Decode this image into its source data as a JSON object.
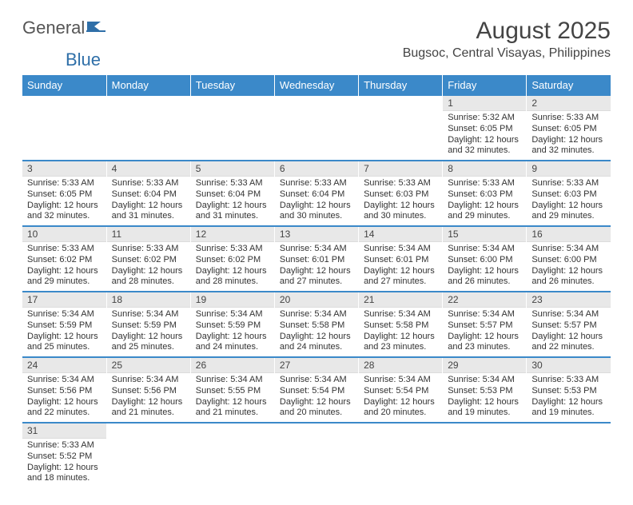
{
  "logo": {
    "text1": "General",
    "text2": "Blue"
  },
  "title": "August 2025",
  "subtitle": "Bugsoc, Central Visayas, Philippines",
  "colors": {
    "header_bg": "#3b89c9",
    "header_fg": "#ffffff",
    "daynum_bg": "#e8e8e8",
    "row_border": "#3b89c9"
  },
  "weekdays": [
    "Sunday",
    "Monday",
    "Tuesday",
    "Wednesday",
    "Thursday",
    "Friday",
    "Saturday"
  ],
  "weeks": [
    [
      null,
      null,
      null,
      null,
      null,
      {
        "n": "1",
        "sunrise": "5:32 AM",
        "sunset": "6:05 PM",
        "daylight": "12 hours and 32 minutes."
      },
      {
        "n": "2",
        "sunrise": "5:33 AM",
        "sunset": "6:05 PM",
        "daylight": "12 hours and 32 minutes."
      }
    ],
    [
      {
        "n": "3",
        "sunrise": "5:33 AM",
        "sunset": "6:05 PM",
        "daylight": "12 hours and 32 minutes."
      },
      {
        "n": "4",
        "sunrise": "5:33 AM",
        "sunset": "6:04 PM",
        "daylight": "12 hours and 31 minutes."
      },
      {
        "n": "5",
        "sunrise": "5:33 AM",
        "sunset": "6:04 PM",
        "daylight": "12 hours and 31 minutes."
      },
      {
        "n": "6",
        "sunrise": "5:33 AM",
        "sunset": "6:04 PM",
        "daylight": "12 hours and 30 minutes."
      },
      {
        "n": "7",
        "sunrise": "5:33 AM",
        "sunset": "6:03 PM",
        "daylight": "12 hours and 30 minutes."
      },
      {
        "n": "8",
        "sunrise": "5:33 AM",
        "sunset": "6:03 PM",
        "daylight": "12 hours and 29 minutes."
      },
      {
        "n": "9",
        "sunrise": "5:33 AM",
        "sunset": "6:03 PM",
        "daylight": "12 hours and 29 minutes."
      }
    ],
    [
      {
        "n": "10",
        "sunrise": "5:33 AM",
        "sunset": "6:02 PM",
        "daylight": "12 hours and 29 minutes."
      },
      {
        "n": "11",
        "sunrise": "5:33 AM",
        "sunset": "6:02 PM",
        "daylight": "12 hours and 28 minutes."
      },
      {
        "n": "12",
        "sunrise": "5:33 AM",
        "sunset": "6:02 PM",
        "daylight": "12 hours and 28 minutes."
      },
      {
        "n": "13",
        "sunrise": "5:34 AM",
        "sunset": "6:01 PM",
        "daylight": "12 hours and 27 minutes."
      },
      {
        "n": "14",
        "sunrise": "5:34 AM",
        "sunset": "6:01 PM",
        "daylight": "12 hours and 27 minutes."
      },
      {
        "n": "15",
        "sunrise": "5:34 AM",
        "sunset": "6:00 PM",
        "daylight": "12 hours and 26 minutes."
      },
      {
        "n": "16",
        "sunrise": "5:34 AM",
        "sunset": "6:00 PM",
        "daylight": "12 hours and 26 minutes."
      }
    ],
    [
      {
        "n": "17",
        "sunrise": "5:34 AM",
        "sunset": "5:59 PM",
        "daylight": "12 hours and 25 minutes."
      },
      {
        "n": "18",
        "sunrise": "5:34 AM",
        "sunset": "5:59 PM",
        "daylight": "12 hours and 25 minutes."
      },
      {
        "n": "19",
        "sunrise": "5:34 AM",
        "sunset": "5:59 PM",
        "daylight": "12 hours and 24 minutes."
      },
      {
        "n": "20",
        "sunrise": "5:34 AM",
        "sunset": "5:58 PM",
        "daylight": "12 hours and 24 minutes."
      },
      {
        "n": "21",
        "sunrise": "5:34 AM",
        "sunset": "5:58 PM",
        "daylight": "12 hours and 23 minutes."
      },
      {
        "n": "22",
        "sunrise": "5:34 AM",
        "sunset": "5:57 PM",
        "daylight": "12 hours and 23 minutes."
      },
      {
        "n": "23",
        "sunrise": "5:34 AM",
        "sunset": "5:57 PM",
        "daylight": "12 hours and 22 minutes."
      }
    ],
    [
      {
        "n": "24",
        "sunrise": "5:34 AM",
        "sunset": "5:56 PM",
        "daylight": "12 hours and 22 minutes."
      },
      {
        "n": "25",
        "sunrise": "5:34 AM",
        "sunset": "5:56 PM",
        "daylight": "12 hours and 21 minutes."
      },
      {
        "n": "26",
        "sunrise": "5:34 AM",
        "sunset": "5:55 PM",
        "daylight": "12 hours and 21 minutes."
      },
      {
        "n": "27",
        "sunrise": "5:34 AM",
        "sunset": "5:54 PM",
        "daylight": "12 hours and 20 minutes."
      },
      {
        "n": "28",
        "sunrise": "5:34 AM",
        "sunset": "5:54 PM",
        "daylight": "12 hours and 20 minutes."
      },
      {
        "n": "29",
        "sunrise": "5:34 AM",
        "sunset": "5:53 PM",
        "daylight": "12 hours and 19 minutes."
      },
      {
        "n": "30",
        "sunrise": "5:33 AM",
        "sunset": "5:53 PM",
        "daylight": "12 hours and 19 minutes."
      }
    ],
    [
      {
        "n": "31",
        "sunrise": "5:33 AM",
        "sunset": "5:52 PM",
        "daylight": "12 hours and 18 minutes."
      },
      null,
      null,
      null,
      null,
      null,
      null
    ]
  ],
  "labels": {
    "sunrise": "Sunrise: ",
    "sunset": "Sunset: ",
    "daylight": "Daylight: "
  }
}
